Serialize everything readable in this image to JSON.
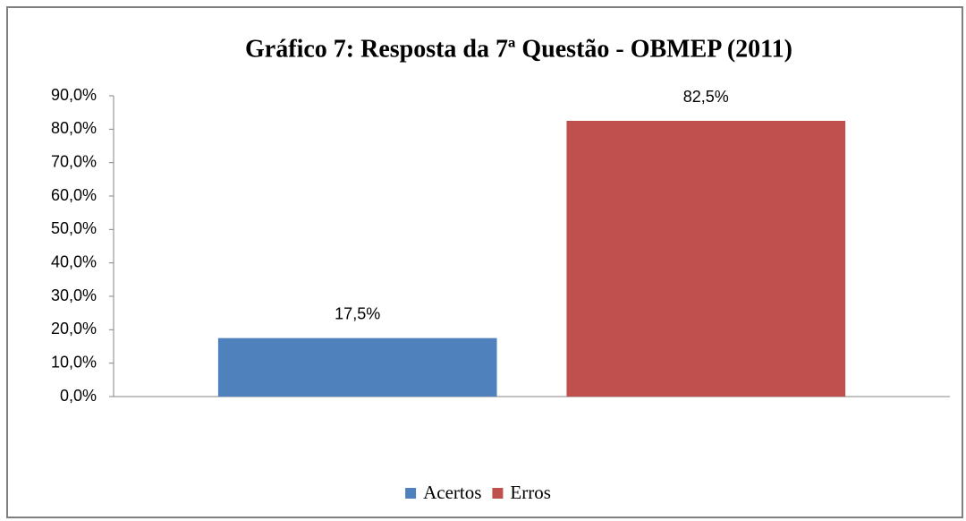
{
  "chart_data": {
    "type": "bar",
    "title": "Gráfico 7: Resposta da 7ª Questão - OBMEP (2011)",
    "categories": [
      null
    ],
    "series": [
      {
        "name": "Acertos",
        "color": "#4f81bd",
        "values": [
          17.5
        ],
        "value_labels": [
          "17,5%"
        ]
      },
      {
        "name": "Erros",
        "color": "#c0504d",
        "values": [
          82.5
        ],
        "value_labels": [
          "82,5%"
        ]
      }
    ],
    "ylim": [
      0,
      90
    ],
    "yticks": [
      {
        "value": 0,
        "label": "0,0%"
      },
      {
        "value": 10,
        "label": "10,0%"
      },
      {
        "value": 20,
        "label": "20,0%"
      },
      {
        "value": 30,
        "label": "30,0%"
      },
      {
        "value": 40,
        "label": "40,0%"
      },
      {
        "value": 50,
        "label": "50,0%"
      },
      {
        "value": 60,
        "label": "60,0%"
      },
      {
        "value": 70,
        "label": "70,0%"
      },
      {
        "value": 80,
        "label": "80,0%"
      },
      {
        "value": 90,
        "label": "90,0%"
      }
    ],
    "grid": false,
    "legend": "bottom"
  }
}
